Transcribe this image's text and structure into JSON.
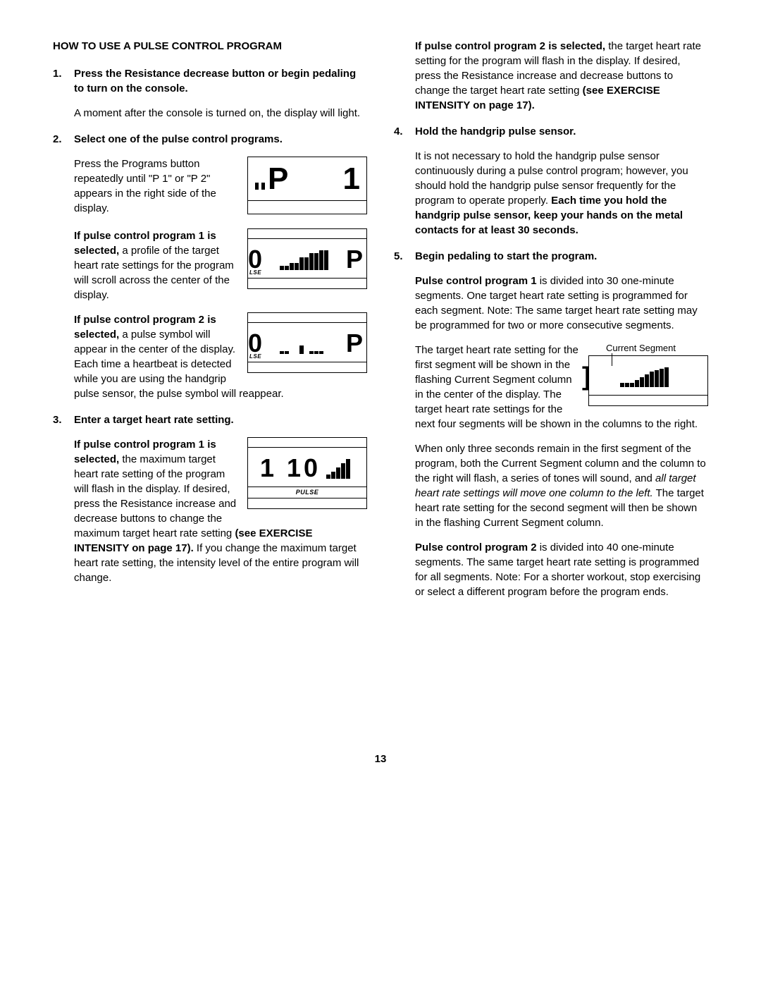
{
  "title": "HOW TO USE A PULSE CONTROL PROGRAM",
  "page_number": "13",
  "left": {
    "step1": {
      "num": "1.",
      "head": "Press the Resistance decrease button or begin pedaling to turn on the console.",
      "p1": "A moment after the console is turned on, the display will light."
    },
    "step2": {
      "num": "2.",
      "head": "Select one of the pulse control programs.",
      "p1": "Press the Programs button repeatedly until \"P 1\" or \"P 2\" appears in the right side of the display.",
      "p2a": "If pulse control program 1 is selected,",
      "p2b": " a profile of the target heart rate settings for the program will scroll across the center of the display.",
      "p3a": "If pulse control program 2 is selected,",
      "p3b": " a pulse symbol will appear in the center of the display. Each time a heartbeat is detected while you are using the handgrip pulse sensor, the pulse symbol will reappear."
    },
    "step3": {
      "num": "3.",
      "head": "Enter a target heart rate setting.",
      "p1a": "If pulse control program 1 is selected,",
      "p1b": " the maximum target heart rate setting of the program will flash in the display. If desired, press the Resistance increase and decrease buttons to change the maximum target heart rate setting ",
      "p1c": "(see EXERCISE INTENSITY on page 17).",
      "p1d": " If you change the maximum target heart rate setting, the intensity level of the entire program will change."
    }
  },
  "right": {
    "step3cont": {
      "p1a": "If pulse control program 2 is selected,",
      "p1b": " the target heart rate setting for the program will flash in the display. If desired, press the Resistance increase and decrease buttons to change the target heart rate setting ",
      "p1c": "(see EXERCISE INTENSITY on page 17)."
    },
    "step4": {
      "num": "4.",
      "head": "Hold the handgrip pulse sensor.",
      "p1": "It is not necessary to hold the handgrip pulse sensor continuously during a pulse control program; however, you should hold the handgrip pulse sensor frequently for the program to operate properly. ",
      "p1b": "Each time you hold the handgrip pulse sensor, keep your hands on the metal contacts for at least 30 seconds."
    },
    "step5": {
      "num": "5.",
      "head": "Begin pedaling to start the program.",
      "p1a": "Pulse control program 1",
      "p1b": " is divided into 30 one-minute segments. One target heart rate setting is programmed for each segment. Note: The same target heart rate setting may be programmed for two or more consecutive segments.",
      "p2": "The target heart rate setting for the first segment will be shown in the flashing Current Segment column in the center of the display. The target heart rate settings for the next four segments will be shown in the columns to the right.",
      "p3a": "When only three seconds remain in the first segment of the program, both the Current Segment column and the column to the right will flash, a series of tones will sound, and ",
      "p3b": "all target heart rate settings will move one column to the left.",
      "p3c": " The target heart rate setting for the second segment will then be shown in the flashing Current Segment column.",
      "p4a": "Pulse control program 2",
      "p4b": " is divided into 40 one-minute segments. The same target heart rate setting is programmed for all segments. Note: For a shorter workout, stop exercising or select a different program before the program ends."
    }
  },
  "figs": {
    "callout": "Current Segment",
    "pulse_label": "PULSE",
    "lse_label": "LSE",
    "fig1_left": "P",
    "fig1_right": "1",
    "fig_zero": "0",
    "fig_P": "P",
    "fig_110": "1 10",
    "bars_profile": [
      6,
      6,
      10,
      10,
      18,
      18,
      24,
      24,
      28,
      28
    ],
    "bars_pulse": [
      4,
      4,
      0,
      0,
      12,
      0,
      4,
      4,
      4,
      0
    ],
    "bars_110": [
      6,
      10,
      16,
      22,
      28
    ],
    "bars_seg": [
      6,
      6,
      6,
      10,
      14,
      18,
      22,
      24,
      26,
      28
    ]
  },
  "colors": {
    "text": "#000000",
    "bg": "#ffffff",
    "border": "#000000"
  }
}
